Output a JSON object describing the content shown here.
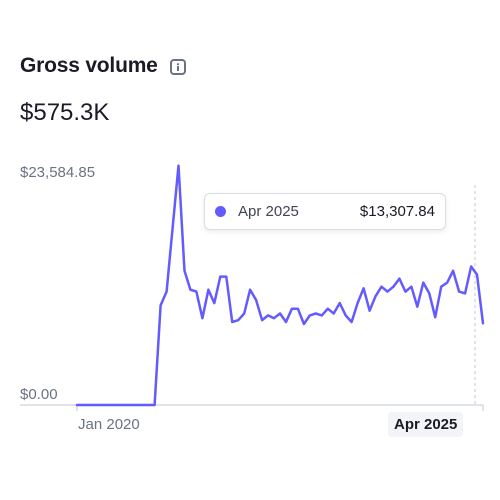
{
  "header": {
    "title": "Gross volume",
    "info_icon": "info-icon"
  },
  "summary": {
    "total": "$575.3K"
  },
  "tooltip": {
    "date": "Apr 2025",
    "value": "$13,307.84"
  },
  "colors": {
    "series": "#635bff",
    "axis": "#c0c8d2",
    "muted_text": "#6a7383"
  },
  "chart_data": {
    "type": "line",
    "yticks": [
      "$23,584.85",
      "$0.00"
    ],
    "xticks": [
      "Jan 2020",
      "Apr 2025"
    ],
    "ylim": [
      0,
      23584.85
    ],
    "grid": false,
    "series": [
      {
        "values": [
          0,
          0,
          0,
          0,
          0,
          0,
          0,
          0,
          0,
          0,
          0,
          0,
          0,
          0,
          10170,
          11580,
          17960,
          24440,
          13700,
          11770,
          11580,
          8860,
          11770,
          10400,
          13110,
          13110,
          8470,
          8660,
          9340,
          11770,
          10720,
          8660,
          9150,
          8860,
          9340,
          8470,
          9830,
          9830,
          8270,
          9150,
          9340,
          9150,
          9830,
          9340,
          10400,
          9150,
          8470,
          10400,
          11910,
          9630,
          11100,
          12080,
          11580,
          12080,
          12910,
          11580,
          12080,
          10040,
          12500,
          11390,
          8960,
          12080,
          12500,
          13700,
          11580,
          11390,
          14140,
          13310,
          8340
        ]
      }
    ]
  }
}
